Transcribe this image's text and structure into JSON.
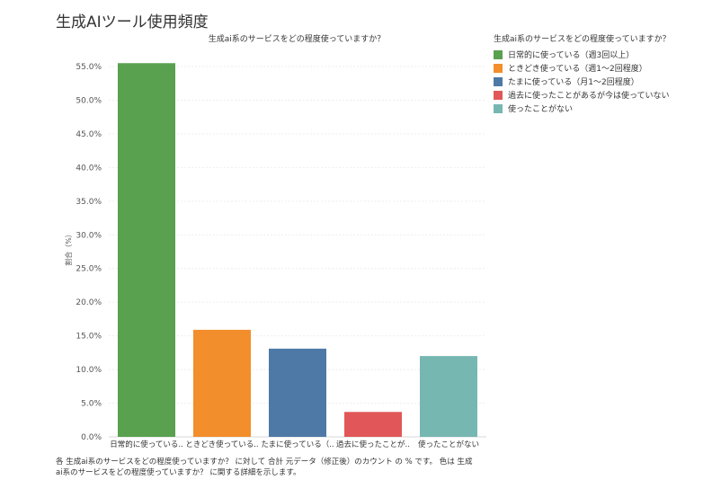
{
  "page": {
    "title": "生成AIツール使用頻度",
    "footnote": "各 生成ai系のサービスをどの程度使っていますか？ に対して 合計 元データ（修正後）のカウント の % です。 色は 生成ai系のサービスをどの程度使っていますか？ に関する詳細を示します。"
  },
  "legend": {
    "title": "生成ai系のサービスをどの程度使っていますか？",
    "items": [
      {
        "label": "日常的に使っている（週3回以上）",
        "color": "#59a14f"
      },
      {
        "label": "ときどき使っている（週1～2回程度）",
        "color": "#f28e2b"
      },
      {
        "label": "たまに使っている（月1～2回程度）",
        "color": "#4e79a7"
      },
      {
        "label": "過去に使ったことがあるが今は使っていない",
        "color": "#e15759"
      },
      {
        "label": "使ったことがない",
        "color": "#76b7b2"
      }
    ]
  },
  "chart_data": {
    "type": "bar",
    "title": "生成ai系のサービスをどの程度使っていますか？",
    "xlabel": "",
    "ylabel": "割合（%）",
    "ylim": [
      0,
      55
    ],
    "yticks": [
      "0.0%",
      "5.0%",
      "10.0%",
      "15.0%",
      "20.0%",
      "25.0%",
      "30.0%",
      "35.0%",
      "40.0%",
      "45.0%",
      "50.0%",
      "55.0%"
    ],
    "grid": true,
    "legend_position": "top-right",
    "categories": [
      "日常的に使っている..",
      "ときどき使っている..",
      "たまに使っている（..",
      "過去に使ったことが..",
      "使ったことがない"
    ],
    "values": [
      55.5,
      15.9,
      13.1,
      3.7,
      12.0
    ],
    "colors": [
      "#59a14f",
      "#f28e2b",
      "#4e79a7",
      "#e15759",
      "#76b7b2"
    ]
  }
}
